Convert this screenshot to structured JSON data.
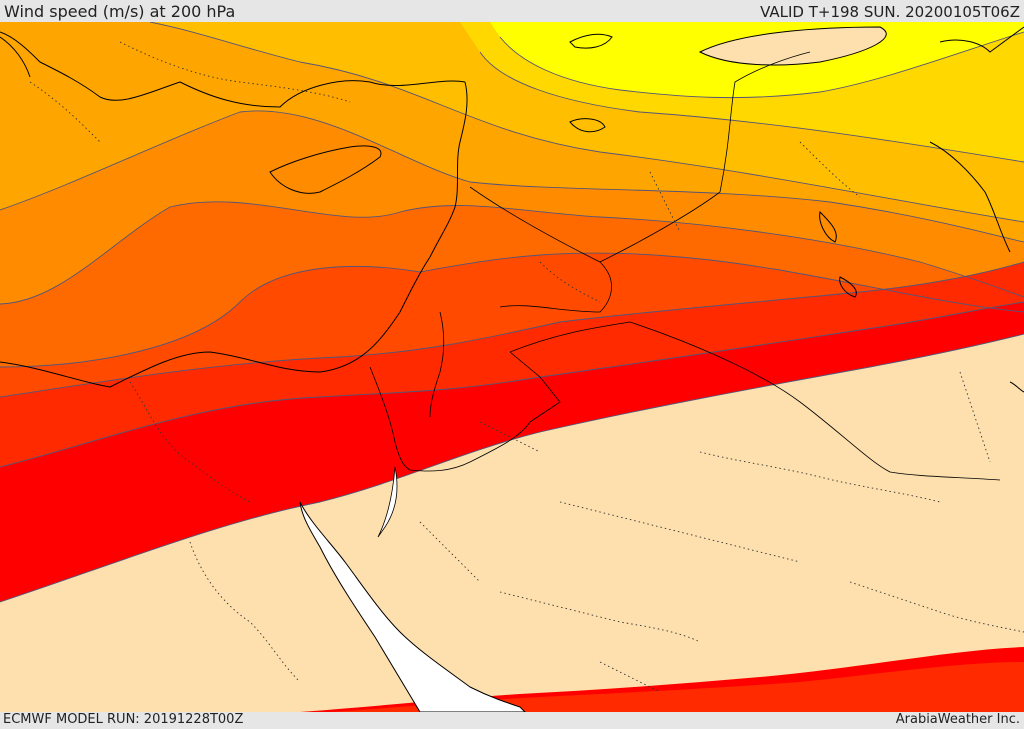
{
  "header": {
    "title": "Wind speed (m/s) at 200 hPa",
    "valid_time": "VALID T+198 SUN. 20200105T06Z"
  },
  "footer": {
    "model_run": "ECMWF MODEL RUN: 20191228T00Z",
    "credit": "ArabiaWeather Inc."
  },
  "map": {
    "palette": {
      "land_background": "#fde0ad",
      "sea": "#ffffff",
      "yellow": "#ffff00",
      "gold": "#ffd800",
      "light_orange": "#ffbf00",
      "orange": "#ffa500",
      "dark_orange": "#ff8c00",
      "orange_red": "#ff6a00",
      "red_orange": "#ff4a00",
      "red": "#ff2a00",
      "deep_red": "#ff0000",
      "contour": "#555577",
      "coastline": "#000000",
      "borders": "#000000"
    }
  }
}
